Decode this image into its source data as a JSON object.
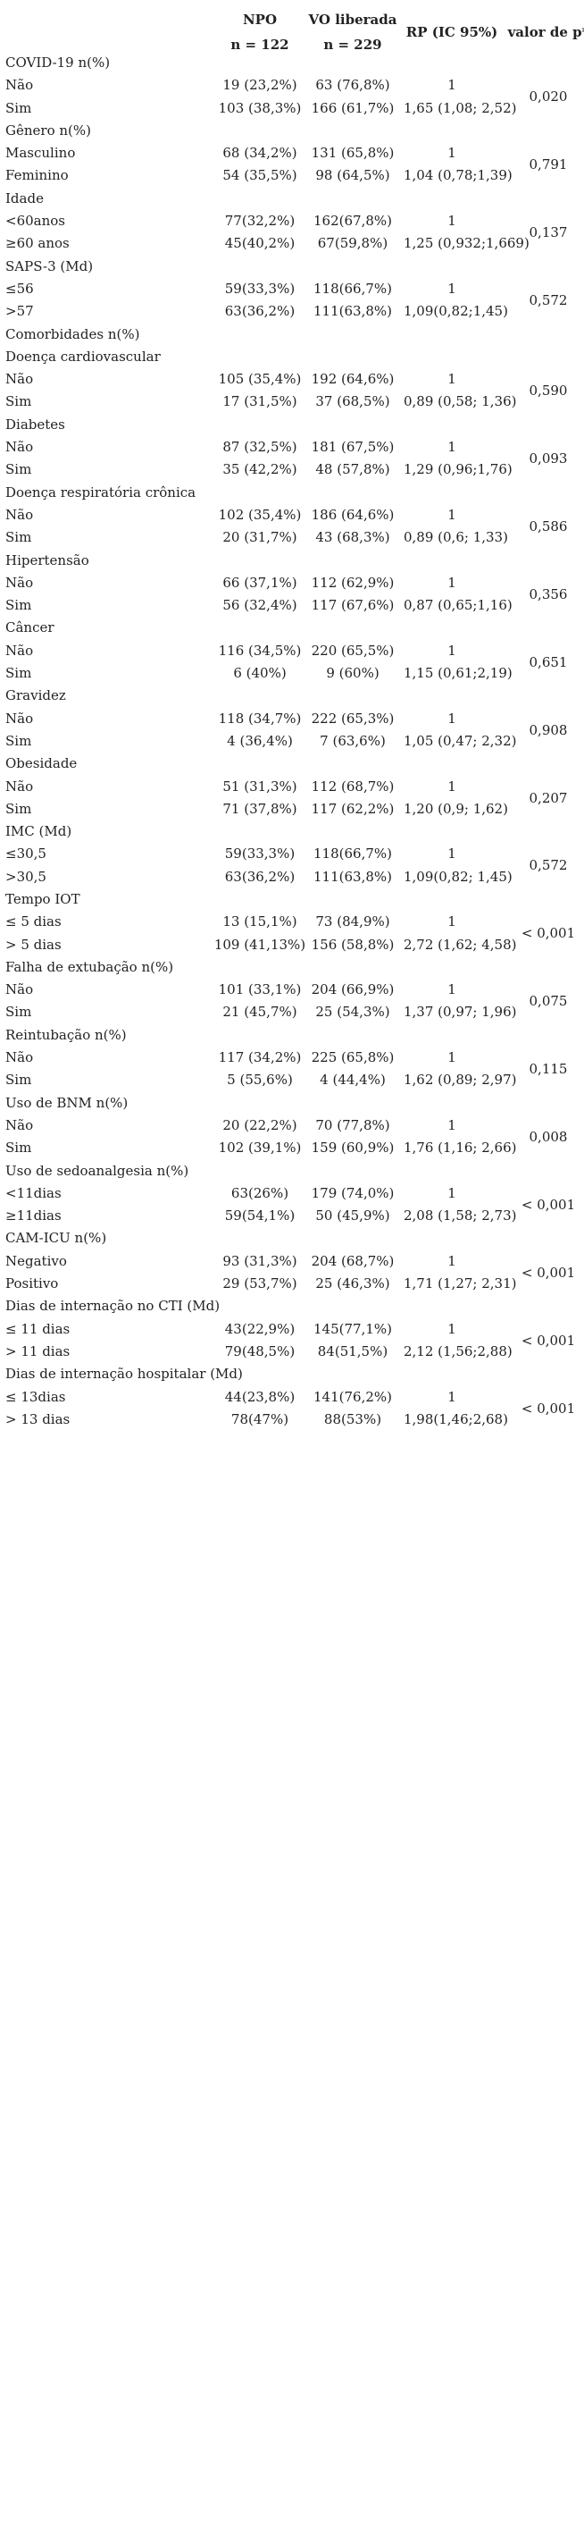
{
  "header": {
    "npo": "NPO",
    "npo_n": "n = 122",
    "vo": "VO liberada",
    "vo_n": "n = 229",
    "rp": "RP (IC 95%)",
    "p": "valor de p*"
  },
  "rows": [
    {
      "label": "COVID-19 n(%)"
    },
    {
      "label": "Não",
      "npo": "19 (23,2%)",
      "vo": "63 (76,8%)",
      "rp": "1",
      "p": "0,020"
    },
    {
      "label": "Sim",
      "npo": "103 (38,3%)",
      "vo": "166 (61,7%)",
      "rp": "1,65 (1,08; 2,52)"
    },
    {
      "label": "Gênero n(%)"
    },
    {
      "label": "Masculino",
      "npo": "68 (34,2%)",
      "vo": "131 (65,8%)",
      "rp": "1",
      "p": "0,791"
    },
    {
      "label": "Feminino",
      "npo": "54 (35,5%)",
      "vo": "98 (64,5%)",
      "rp": "1,04 (0,78;1,39)"
    },
    {
      "label": "Idade"
    },
    {
      "label": "<60anos",
      "npo": "77(32,2%)",
      "vo": "162(67,8%)",
      "rp": "1",
      "p": "0,137"
    },
    {
      "label": "≥60 anos",
      "npo": "45(40,2%)",
      "vo": "67(59,8%)",
      "rp": "1,25 (0,932;1,669)"
    },
    {
      "label": "SAPS-3 (Md)"
    },
    {
      "label": "≤56",
      "npo": "59(33,3%)",
      "vo": "118(66,7%)",
      "rp": "1",
      "p": "0,572"
    },
    {
      "label": ">57",
      "npo": "63(36,2%)",
      "vo": "111(63,8%)",
      "rp": "1,09(0,82;1,45)"
    },
    {
      "label": "Comorbidades n(%)"
    },
    {
      "label": "Doença cardiovascular"
    },
    {
      "label": "Não",
      "npo": "105 (35,4%)",
      "vo": "192 (64,6%)",
      "rp": "1",
      "p": "0,590"
    },
    {
      "label": "Sim",
      "npo": "17 (31,5%)",
      "vo": "37 (68,5%)",
      "rp": "0,89 (0,58; 1,36)"
    },
    {
      "label": "Diabetes"
    },
    {
      "label": "Não",
      "npo": "87 (32,5%)",
      "vo": "181 (67,5%)",
      "rp": "1",
      "p": "0,093"
    },
    {
      "label": "Sim",
      "npo": "35 (42,2%)",
      "vo": "48 (57,8%)",
      "rp": "1,29 (0,96;1,76)"
    },
    {
      "label": "Doença respiratória crônica"
    },
    {
      "label": "Não",
      "npo": "102 (35,4%)",
      "vo": "186 (64,6%)",
      "rp": "1",
      "p": "0,586"
    },
    {
      "label": "Sim",
      "npo": "20 (31,7%)",
      "vo": "43 (68,3%)",
      "rp": "0,89 (0,6; 1,33)"
    },
    {
      "label": "Hipertensão"
    },
    {
      "label": "Não",
      "npo": "66 (37,1%)",
      "vo": "112 (62,9%)",
      "rp": "1",
      "p": "0,356"
    },
    {
      "label": "Sim",
      "npo": "56 (32,4%)",
      "vo": "117 (67,6%)",
      "rp": "0,87 (0,65;1,16)"
    },
    {
      "label": "Câncer"
    },
    {
      "label": "Não",
      "npo": "116 (34,5%)",
      "vo": "220 (65,5%)",
      "rp": "1",
      "p": "0,651"
    },
    {
      "label": "Sim",
      "npo": "6 (40%)",
      "vo": "9 (60%)",
      "rp": "1,15 (0,61;2,19)"
    },
    {
      "label": "Gravidez"
    },
    {
      "label": "Não",
      "npo": "118 (34,7%)",
      "vo": "222 (65,3%)",
      "rp": "1",
      "p": "0,908"
    },
    {
      "label": "Sim",
      "npo": "4 (36,4%)",
      "vo": "7 (63,6%)",
      "rp": "1,05 (0,47; 2,32)"
    },
    {
      "label": "Obesidade"
    },
    {
      "label": "Não",
      "npo": "51 (31,3%)",
      "vo": "112 (68,7%)",
      "rp": "1",
      "p": "0,207"
    },
    {
      "label": "Sim",
      "npo": "71 (37,8%)",
      "vo": "117 (62,2%)",
      "rp": "1,20 (0,9; 1,62)"
    },
    {
      "label": "IMC (Md)"
    },
    {
      "label": "≤30,5",
      "npo": "59(33,3%)",
      "vo": "118(66,7%)",
      "rp": "1",
      "p": "0,572"
    },
    {
      "label": ">30,5",
      "npo": "63(36,2%)",
      "vo": "111(63,8%)",
      "rp": "1,09(0,82; 1,45)"
    },
    {
      "label": "Tempo IOT"
    },
    {
      "label": "≤ 5 dias",
      "npo": "13 (15,1%)",
      "vo": "73 (84,9%)",
      "rp": "1",
      "p": "< 0,001"
    },
    {
      "label": "> 5 dias",
      "npo": "109 (41,13%)",
      "vo": "156 (58,8%)",
      "rp": "2,72 (1,62; 4,58)"
    },
    {
      "label": "Falha de extubação n(%)"
    },
    {
      "label": "Não",
      "npo": "101 (33,1%)",
      "vo": "204 (66,9%)",
      "rp": "1",
      "p": "0,075"
    },
    {
      "label": "Sim",
      "npo": "21 (45,7%)",
      "vo": "25 (54,3%)",
      "rp": "1,37 (0,97; 1,96)"
    },
    {
      "label": "Reintubação n(%)"
    },
    {
      "label": "Não",
      "npo": "117 (34,2%)",
      "vo": "225 (65,8%)",
      "rp": "1",
      "p": "0,115"
    },
    {
      "label": "Sim",
      "npo": "5 (55,6%)",
      "vo": "4 (44,4%)",
      "rp": "1,62 (0,89; 2,97)"
    },
    {
      "label": "Uso de BNM n(%)"
    },
    {
      "label": "Não",
      "npo": "20 (22,2%)",
      "vo": "70 (77,8%)",
      "rp": "1",
      "p": "0,008"
    },
    {
      "label": "Sim",
      "npo": "102 (39,1%)",
      "vo": "159 (60,9%)",
      "rp": "1,76 (1,16; 2,66)"
    },
    {
      "label": "Uso de sedoanalgesia n(%)"
    },
    {
      "label": "<11dias",
      "npo": "63(26%)",
      "vo": "179 (74,0%)",
      "rp": "1",
      "p": "< 0,001"
    },
    {
      "label": "≥11dias",
      "npo": "59(54,1%)",
      "vo": "50 (45,9%)",
      "rp": "2,08 (1,58; 2,73)"
    },
    {
      "label": "CAM-ICU n(%)"
    },
    {
      "label": "Negativo",
      "npo": "93 (31,3%)",
      "vo": "204 (68,7%)",
      "rp": "1",
      "p": "< 0,001"
    },
    {
      "label": "Positivo",
      "npo": "29 (53,7%)",
      "vo": "25 (46,3%)",
      "rp": "1,71 (1,27; 2,31)"
    },
    {
      "label": "Dias de internação no CTI (Md)"
    },
    {
      "label": "≤ 11 dias",
      "npo": "43(22,9%)",
      "vo": "145(77,1%)",
      "rp": "1",
      "p": "< 0,001"
    },
    {
      "label": "> 11 dias",
      "npo": "79(48,5%)",
      "vo": "84(51,5%)",
      "rp": "2,12 (1,56;2,88)"
    },
    {
      "label": "Dias de internação hospitalar (Md)"
    },
    {
      "label": "≤ 13dias",
      "npo": "44(23,8%)",
      "vo": "141(76,2%)",
      "rp": "1",
      "p": "< 0,001"
    },
    {
      "label": "> 13 dias",
      "npo": "78(47%)",
      "vo": "88(53%)",
      "rp": "1,98(1,46;2,68)"
    }
  ]
}
